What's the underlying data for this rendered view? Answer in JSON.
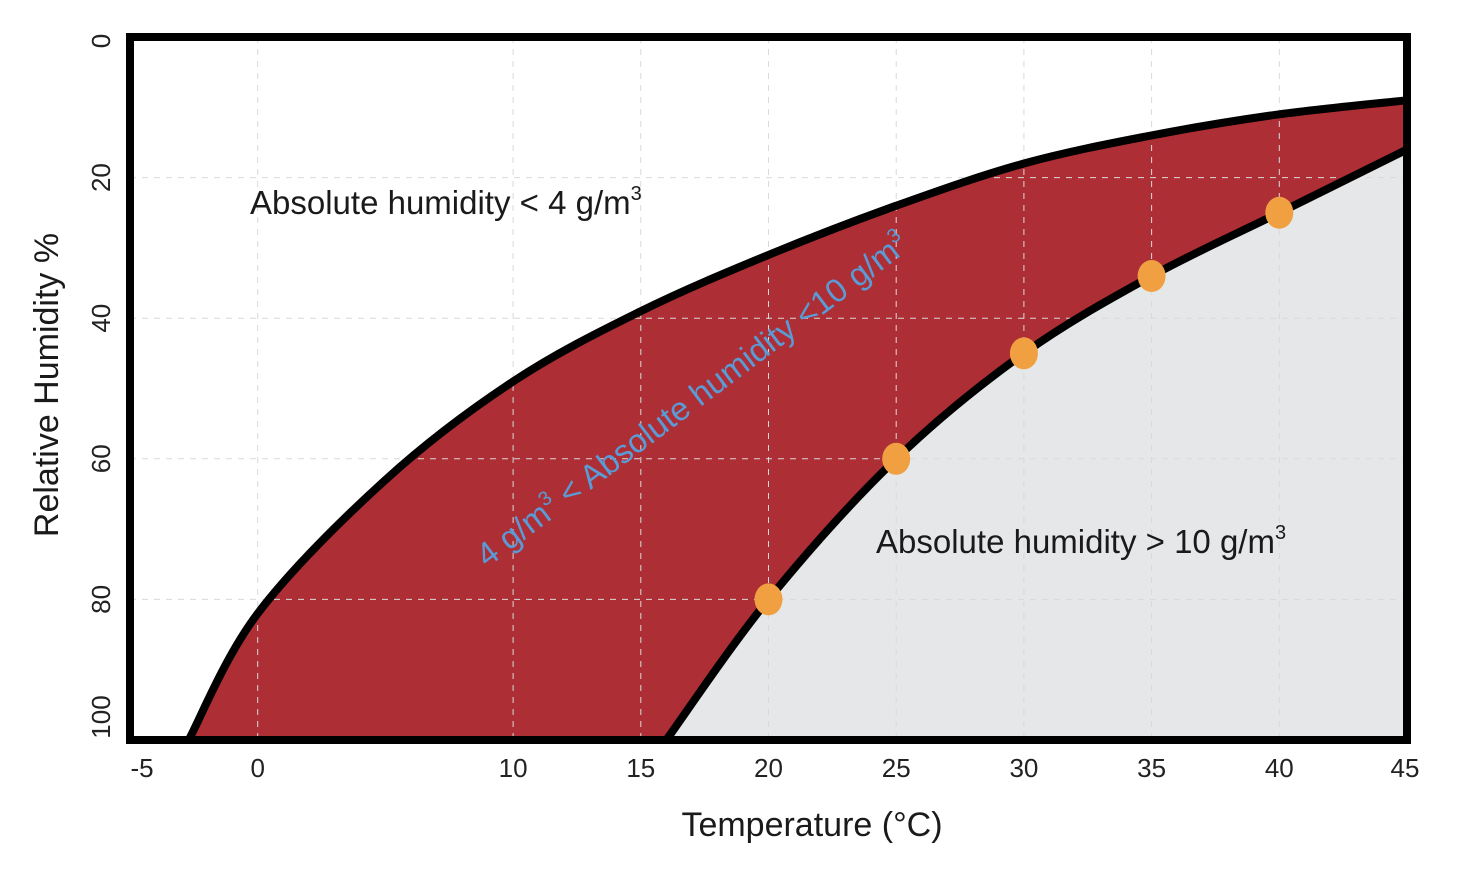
{
  "colors": {
    "band": "#ad2e35",
    "high_region": "#e6e7e9",
    "low_region": "#ffffff",
    "curve": "#000000",
    "points": "#f0a040",
    "band_label": "#5b9bd5",
    "grid": "#d9d9d9"
  },
  "labels": {
    "low_base": "Absolute humidity < 4 g/m",
    "high_base": "Absolute humidity > 10 g/m",
    "band_part1": "4 g/m",
    "band_part2": " < Absolute humidity <10 g/m",
    "superscript": "3"
  },
  "chart_data": {
    "type": "area",
    "xlabel": "Temperature (°C)",
    "ylabel": "Relative Humidity %",
    "xlim": [
      -5,
      45
    ],
    "ylim": [
      0,
      100
    ],
    "y_inverted": true,
    "xticks": [
      -5,
      0,
      10,
      15,
      20,
      25,
      30,
      35,
      40,
      45
    ],
    "xtick_labels": [
      "-5",
      "0",
      "10",
      "15",
      "20",
      "25",
      "30",
      "35",
      "40",
      "45"
    ],
    "yticks": [
      0,
      20,
      40,
      60,
      80,
      100
    ],
    "ytick_labels": [
      "0",
      "20",
      "40",
      "60",
      "80",
      "100"
    ],
    "grid": true,
    "series": [
      {
        "name": "Absolute humidity 4 g/m3",
        "x": [
          -2.7,
          0,
          5,
          10,
          15,
          20,
          25,
          30,
          35,
          40,
          45
        ],
        "y": [
          100,
          82,
          63,
          49,
          39,
          31,
          24,
          18,
          14,
          11,
          9
        ]
      },
      {
        "name": "Absolute humidity 10 g/m3",
        "x": [
          16,
          20,
          25,
          30,
          35,
          40,
          45
        ],
        "y": [
          100,
          80,
          60,
          45,
          34,
          25,
          16
        ]
      }
    ],
    "points": {
      "x": [
        20,
        25,
        30,
        35,
        40
      ],
      "y": [
        80,
        60,
        45,
        34,
        25
      ]
    }
  }
}
